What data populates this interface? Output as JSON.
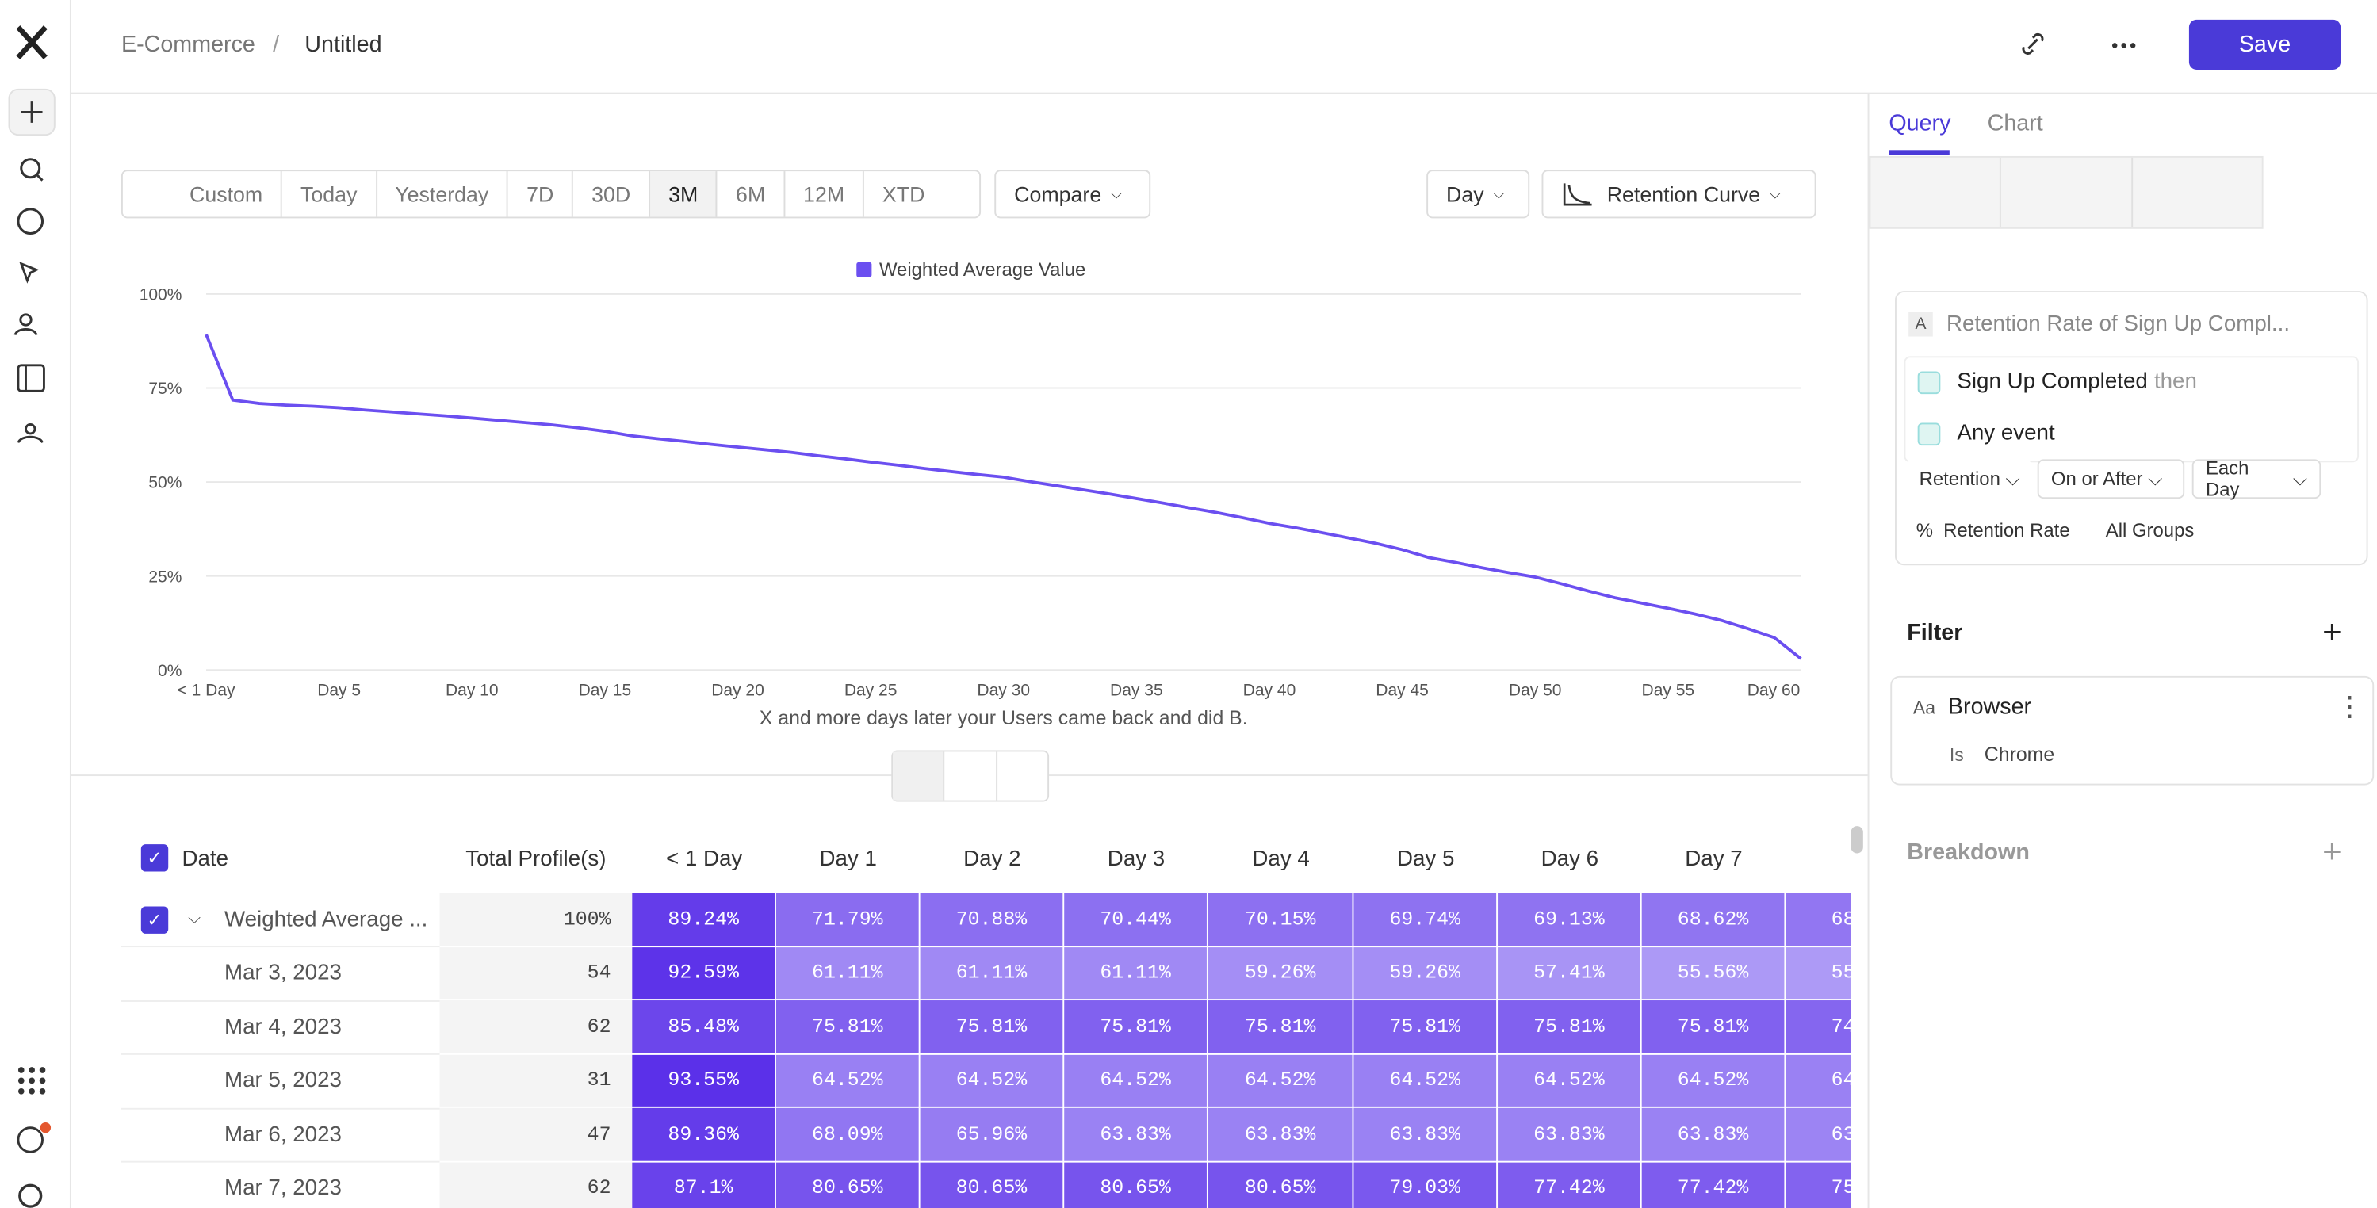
{
  "header": {
    "breadcrumb": [
      "E-Commerce",
      "/",
      "Untitled"
    ],
    "save": "Save"
  },
  "toolbar": {
    "ranges": [
      "Custom",
      "Today",
      "Yesterday",
      "7D",
      "30D",
      "3M",
      "6M",
      "12M",
      "XTD"
    ],
    "compare": "Compare",
    "interval": "Day",
    "chart_type": "Retention Curve"
  },
  "chart_data": {
    "type": "line",
    "x_label": "X and more days later your Users came back and did B.",
    "categories": [
      "< 1 Day",
      null,
      null,
      null,
      null,
      "Day 5",
      null,
      null,
      null,
      null,
      "Day 10",
      null,
      null,
      null,
      null,
      "Day 15",
      null,
      null,
      null,
      null,
      "Day 20",
      null,
      null,
      null,
      null,
      "Day 25",
      null,
      null,
      null,
      null,
      "Day 30",
      null,
      null,
      null,
      null,
      "Day 35",
      null,
      null,
      null,
      null,
      "Day 40",
      null,
      null,
      null,
      null,
      "Day 45",
      null,
      null,
      null,
      null,
      "Day 50",
      null,
      null,
      null,
      null,
      "Day 55",
      null,
      null,
      null,
      null,
      "Day 60"
    ],
    "series": [
      {
        "name": "Weighted Average Value",
        "color": "#6b4ff0",
        "values": [
          89.24,
          71.79,
          70.88,
          70.44,
          70.15,
          69.74,
          69.13,
          68.62,
          68.1,
          67.6,
          67.0,
          66.4,
          65.8,
          65.2,
          64.4,
          63.5,
          62.3,
          61.5,
          60.8,
          60.0,
          59.3,
          58.6,
          57.9,
          57.0,
          56.2,
          55.3,
          54.5,
          53.6,
          52.8,
          52.0,
          51.3,
          50.1,
          49.0,
          47.9,
          46.8,
          45.6,
          44.4,
          43.1,
          41.9,
          40.5,
          39.0,
          37.8,
          36.5,
          35.1,
          33.7,
          32.0,
          29.9,
          28.6,
          27.2,
          25.9,
          24.7,
          22.9,
          21.0,
          19.2,
          17.8,
          16.4,
          14.9,
          13.2,
          11.0,
          8.6,
          3.0
        ]
      }
    ],
    "ylim": [
      0,
      100
    ],
    "yticks": [
      {
        "value": 0,
        "label": "0%"
      },
      {
        "value": 25,
        "label": "25%"
      },
      {
        "value": 50,
        "label": "50%"
      },
      {
        "value": 75,
        "label": "75%"
      },
      {
        "value": 100,
        "label": "100%"
      }
    ],
    "grid": true
  },
  "table": {
    "columns": [
      "Date",
      "Total Profile(s)",
      "< 1 Day",
      "Day 1",
      "Day 2",
      "Day 3",
      "Day 4",
      "Day 5",
      "Day 6",
      "Day 7"
    ],
    "rows": [
      [
        "Weighted Average ...",
        "100%",
        "89.24%",
        "71.79%",
        "70.88%",
        "70.44%",
        "70.15%",
        "69.74%",
        "69.13%",
        "68.62%",
        "68"
      ],
      [
        "Mar 3, 2023",
        "54",
        "92.59%",
        "61.11%",
        "61.11%",
        "61.11%",
        "59.26%",
        "59.26%",
        "57.41%",
        "55.56%",
        "55"
      ],
      [
        "Mar 4, 2023",
        "62",
        "85.48%",
        "75.81%",
        "75.81%",
        "75.81%",
        "75.81%",
        "75.81%",
        "75.81%",
        "75.81%",
        "74"
      ],
      [
        "Mar 5, 2023",
        "31",
        "93.55%",
        "64.52%",
        "64.52%",
        "64.52%",
        "64.52%",
        "64.52%",
        "64.52%",
        "64.52%",
        "64"
      ],
      [
        "Mar 6, 2023",
        "47",
        "89.36%",
        "68.09%",
        "65.96%",
        "63.83%",
        "63.83%",
        "63.83%",
        "63.83%",
        "63.83%",
        "63"
      ],
      [
        "Mar 7, 2023",
        "62",
        "87.1%",
        "80.65%",
        "80.65%",
        "80.65%",
        "80.65%",
        "79.03%",
        "77.42%",
        "77.42%",
        "75"
      ]
    ]
  },
  "panel": {
    "tabs": [
      "Query",
      "Chart"
    ],
    "metric": {
      "letter": "A",
      "name": "Retention Rate of Sign Up Compl...",
      "event1": "Sign Up Completed",
      "then": "then",
      "event2": "Any event",
      "options": [
        "Retention",
        "On or After",
        "Each Day"
      ],
      "unit": "%",
      "measure": "Retention Rate",
      "groups": "All Groups"
    },
    "filter": {
      "title": "Filter",
      "type": "Aa",
      "property": "Browser",
      "operator": "Is",
      "value": "Chrome"
    },
    "breakdown": "Breakdown"
  }
}
